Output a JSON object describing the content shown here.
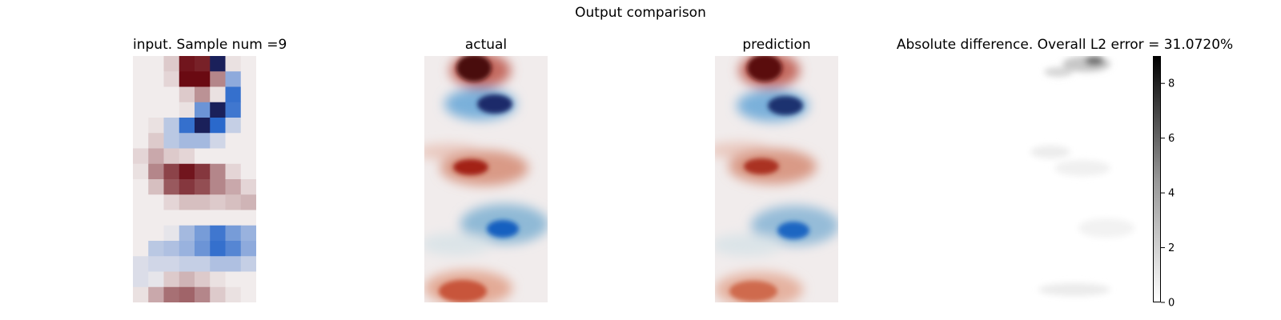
{
  "chart_data": {
    "type": "heatmap",
    "suptitle": "Output comparison",
    "panels": [
      {
        "key": "input",
        "title": "input. Sample num =9"
      },
      {
        "key": "actual",
        "title": "actual"
      },
      {
        "key": "prediction",
        "title": "prediction"
      },
      {
        "key": "difference",
        "title": "Absolute difference. Overall L2 error = 31.0720%"
      }
    ],
    "input_grid": [
      [
        0.0,
        0.0,
        0.15,
        0.95,
        0.9,
        -1.0,
        0.05,
        0.0
      ],
      [
        0.0,
        0.0,
        0.1,
        1.0,
        1.0,
        0.45,
        -0.45,
        0.0
      ],
      [
        0.0,
        0.0,
        0.0,
        0.15,
        0.4,
        0.05,
        -0.85,
        0.0
      ],
      [
        0.0,
        0.0,
        0.0,
        0.05,
        -0.6,
        -1.0,
        -0.8,
        0.0
      ],
      [
        0.0,
        0.05,
        -0.25,
        -0.85,
        -1.0,
        -0.9,
        -0.2,
        0.0
      ],
      [
        0.0,
        0.15,
        -0.25,
        -0.35,
        -0.35,
        -0.15,
        0.0,
        0.0
      ],
      [
        0.1,
        0.3,
        0.15,
        0.1,
        0.0,
        0.0,
        0.0,
        0.0
      ],
      [
        0.05,
        0.45,
        0.75,
        0.95,
        0.8,
        0.45,
        0.1,
        0.0
      ],
      [
        0.0,
        0.2,
        0.65,
        0.8,
        0.7,
        0.45,
        0.3,
        0.1
      ],
      [
        0.0,
        0.0,
        0.1,
        0.2,
        0.2,
        0.15,
        0.2,
        0.25
      ],
      [
        0.0,
        0.0,
        0.0,
        0.0,
        0.0,
        0.0,
        0.0,
        0.0
      ],
      [
        0.0,
        0.0,
        -0.05,
        -0.35,
        -0.55,
        -0.8,
        -0.55,
        -0.4
      ],
      [
        0.0,
        -0.25,
        -0.3,
        -0.4,
        -0.6,
        -0.85,
        -0.7,
        -0.45
      ],
      [
        -0.1,
        -0.15,
        -0.15,
        -0.2,
        -0.2,
        -0.3,
        -0.3,
        -0.2
      ],
      [
        -0.1,
        -0.05,
        0.15,
        0.25,
        0.15,
        0.05,
        0.0,
        0.0
      ],
      [
        0.05,
        0.3,
        0.55,
        0.6,
        0.45,
        0.15,
        0.05,
        0.0
      ]
    ],
    "colorbar": {
      "min": 0,
      "max": 9,
      "ticks": [
        0,
        2,
        4,
        6,
        8
      ]
    }
  }
}
